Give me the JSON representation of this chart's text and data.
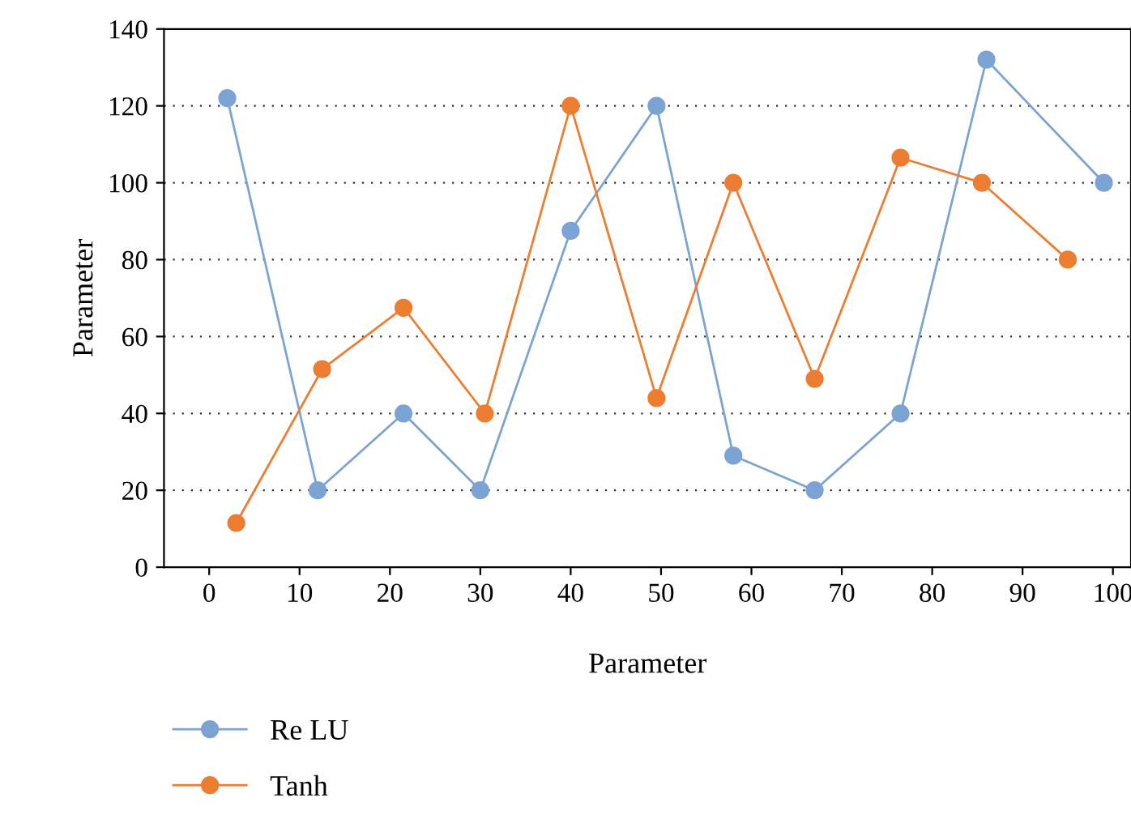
{
  "chart_data": {
    "type": "line",
    "xlabel": "Parameter",
    "ylabel": "Parameter",
    "series": [
      {
        "name": "Re LU",
        "color": "#7ba3d4",
        "x": [
          2,
          12,
          21.5,
          30,
          40,
          49.5,
          58,
          67,
          76.5,
          86,
          99
        ],
        "values": [
          122,
          20,
          40,
          20,
          87.5,
          120,
          29,
          20,
          40,
          132,
          100
        ]
      },
      {
        "name": "Tanh",
        "color": "#ed7d31",
        "x": [
          3,
          12.5,
          21.5,
          30.5,
          40,
          49.5,
          58,
          67,
          76.5,
          85.5,
          95
        ],
        "values": [
          11.5,
          51.5,
          67.5,
          40,
          120,
          44,
          100,
          49,
          106.5,
          100,
          80
        ]
      }
    ],
    "xlim": [
      -5,
      102
    ],
    "xticks": [
      0,
      10,
      20,
      30,
      40,
      50,
      60,
      70,
      80,
      90,
      100
    ],
    "ylim": [
      0,
      140
    ],
    "yticks": [
      0,
      20,
      40,
      60,
      80,
      100,
      120,
      140
    ],
    "grid": "y",
    "legend": "bottom left",
    "marker": "circle",
    "line_style": "solid"
  }
}
